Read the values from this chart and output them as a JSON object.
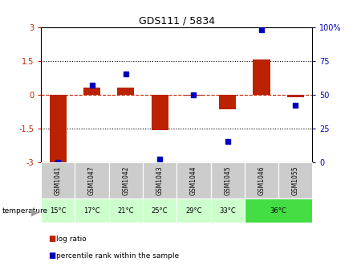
{
  "title": "GDS111 / 5834",
  "samples": [
    "GSM1041",
    "GSM1047",
    "GSM1042",
    "GSM1043",
    "GSM1044",
    "GSM1045",
    "GSM1046",
    "GSM1055"
  ],
  "log_ratios": [
    -3.0,
    0.3,
    0.3,
    -1.58,
    -0.05,
    -0.65,
    1.55,
    -0.12
  ],
  "percentile_ranks": [
    0,
    57,
    65,
    2,
    50,
    15,
    98,
    42
  ],
  "ylim_left": [
    -3,
    3
  ],
  "ylim_right": [
    0,
    100
  ],
  "yticks_left": [
    -3,
    -1.5,
    0,
    1.5,
    3
  ],
  "ytick_labels_left": [
    "-3",
    "-1.5",
    "0",
    "1.5",
    "3"
  ],
  "yticks_right": [
    0,
    25,
    50,
    75,
    100
  ],
  "ytick_labels_right": [
    "0",
    "25",
    "50",
    "75",
    "100%"
  ],
  "bar_color": "#bb2200",
  "dot_color": "#0000bb",
  "bg_color": "#ffffff",
  "hline_color": "#cc2200",
  "temp_bg_light": "#ccffcc",
  "temp_bg_green": "#44dd44",
  "sample_bg": "#cccccc",
  "legend_log_label": "log ratio",
  "legend_pct_label": "percentile rank within the sample",
  "temp_info": [
    [
      0,
      1,
      "15°C",
      "#ccffcc"
    ],
    [
      1,
      2,
      "17°C",
      "#ccffcc"
    ],
    [
      2,
      3,
      "21°C",
      "#ccffcc"
    ],
    [
      3,
      4,
      "25°C",
      "#ccffcc"
    ],
    [
      4,
      5,
      "29°C",
      "#ccffcc"
    ],
    [
      5,
      6,
      "33°C",
      "#ccffcc"
    ],
    [
      6,
      8,
      "36°C",
      "#44dd44"
    ]
  ]
}
